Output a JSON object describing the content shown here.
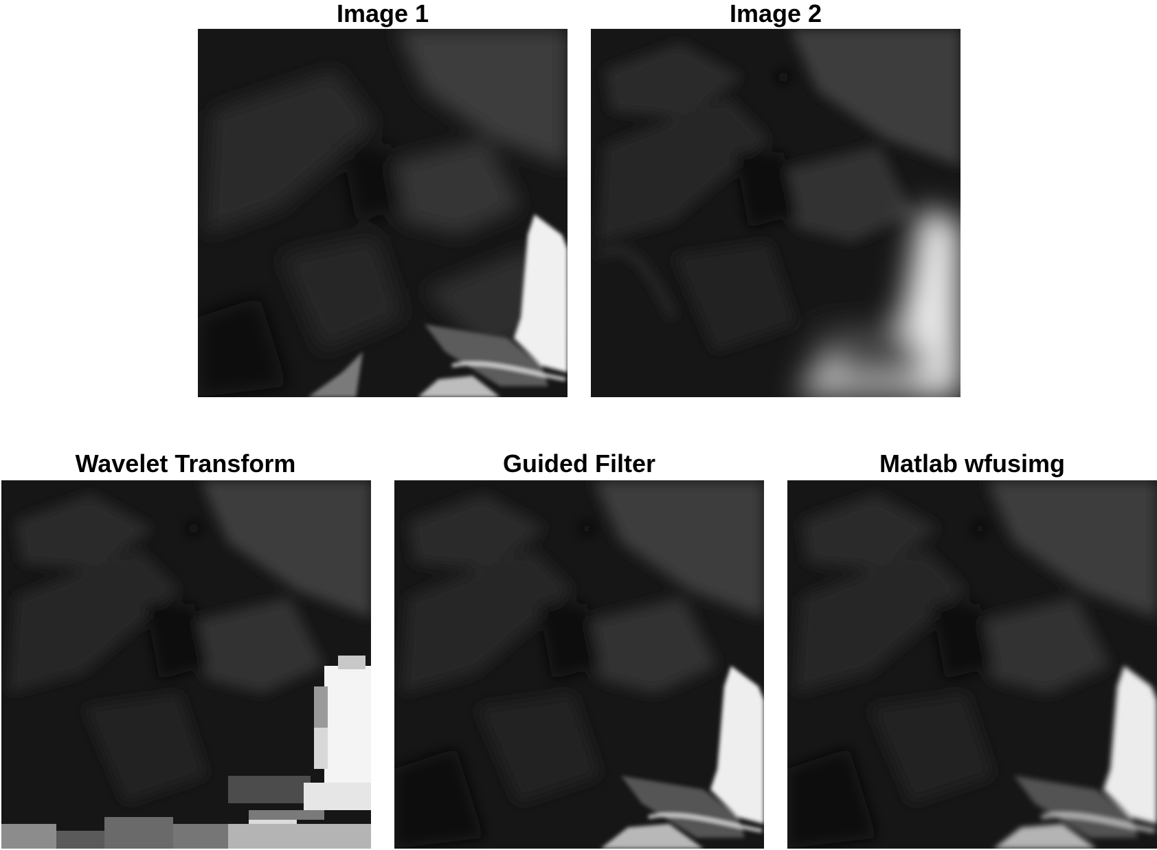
{
  "panels": [
    {
      "id": "image-1",
      "title": "Image 1",
      "style": "source-focus-bottom-right"
    },
    {
      "id": "image-2",
      "title": "Image 2",
      "style": "source-focus-top-left"
    },
    {
      "id": "wavelet-transform",
      "title": "Wavelet Transform",
      "style": "fused-blocky"
    },
    {
      "id": "guided-filter",
      "title": "Guided Filter",
      "style": "fused-smooth"
    },
    {
      "id": "matlab-wfusimg",
      "title": "Matlab wfusimg",
      "style": "fused-smooth"
    }
  ],
  "colors": {
    "background": "#ffffff",
    "title": "#000000",
    "image_dark": "#161616",
    "image_mid": "#3a3a3a",
    "image_light": "#f2f2f2"
  }
}
